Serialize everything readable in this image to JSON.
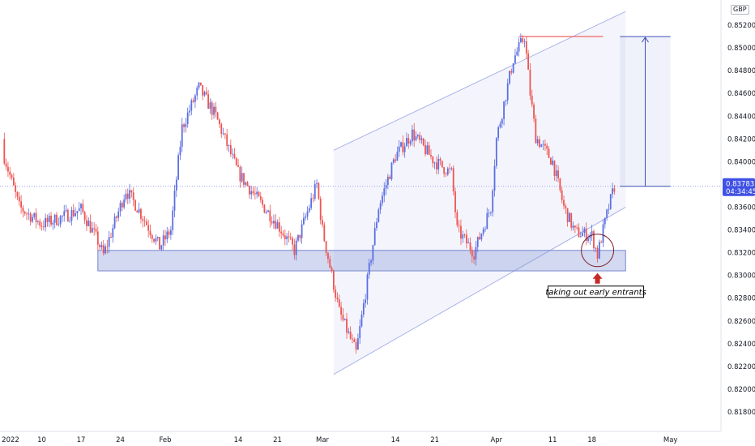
{
  "chart_data": {
    "type": "candlestick",
    "currency": "GBP",
    "last_price": "0.83783",
    "countdown": "04:34:45",
    "y_ticks": [
      "0.81800",
      "0.82000",
      "0.82200",
      "0.82400",
      "0.82600",
      "0.82800",
      "0.83000",
      "0.83200",
      "0.83400",
      "0.83600",
      "0.83800",
      "0.84000",
      "0.84200",
      "0.84400",
      "0.84600",
      "0.84800",
      "0.85000",
      "0.85200"
    ],
    "x_ticks": [
      "2022",
      "10",
      "17",
      "24",
      "Feb",
      "14",
      "21",
      "Mar",
      "14",
      "21",
      "Apr",
      "11",
      "18",
      "May"
    ],
    "annotation": "taking out early entrants",
    "colors": {
      "up": "#5b6ee1",
      "down": "#ef5350",
      "zone": "#8a9ad8",
      "channel": "#a9b3e8",
      "marker": "#c62828"
    },
    "close_path": [
      {
        "date": "2022-01-03",
        "close": 0.841
      },
      {
        "date": "2022-01-06",
        "close": 0.836
      },
      {
        "date": "2022-01-10",
        "close": 0.8345
      },
      {
        "date": "2022-01-13",
        "close": 0.835
      },
      {
        "date": "2022-01-17",
        "close": 0.8358
      },
      {
        "date": "2022-01-20",
        "close": 0.833
      },
      {
        "date": "2022-01-21",
        "close": 0.8318
      },
      {
        "date": "2022-01-25",
        "close": 0.8375
      },
      {
        "date": "2022-01-27",
        "close": 0.836
      },
      {
        "date": "2022-01-31",
        "close": 0.8325
      },
      {
        "date": "2022-02-02",
        "close": 0.834
      },
      {
        "date": "2022-02-04",
        "close": 0.843
      },
      {
        "date": "2022-02-07",
        "close": 0.8465
      },
      {
        "date": "2022-02-10",
        "close": 0.844
      },
      {
        "date": "2022-02-14",
        "close": 0.839
      },
      {
        "date": "2022-02-17",
        "close": 0.837
      },
      {
        "date": "2022-02-21",
        "close": 0.8345
      },
      {
        "date": "2022-02-24",
        "close": 0.8322
      },
      {
        "date": "2022-02-28",
        "close": 0.838
      },
      {
        "date": "2022-03-01",
        "close": 0.834
      },
      {
        "date": "2022-03-04",
        "close": 0.8268
      },
      {
        "date": "2022-03-07",
        "close": 0.8232
      },
      {
        "date": "2022-03-09",
        "close": 0.8295
      },
      {
        "date": "2022-03-11",
        "close": 0.836
      },
      {
        "date": "2022-03-14",
        "close": 0.8405
      },
      {
        "date": "2022-03-17",
        "close": 0.8425
      },
      {
        "date": "2022-03-21",
        "close": 0.84
      },
      {
        "date": "2022-03-24",
        "close": 0.839
      },
      {
        "date": "2022-03-25",
        "close": 0.834
      },
      {
        "date": "2022-03-28",
        "close": 0.832
      },
      {
        "date": "2022-03-31",
        "close": 0.836
      },
      {
        "date": "2022-04-01",
        "close": 0.842
      },
      {
        "date": "2022-04-04",
        "close": 0.849
      },
      {
        "date": "2022-04-06",
        "close": 0.851
      },
      {
        "date": "2022-04-07",
        "close": 0.846
      },
      {
        "date": "2022-04-08",
        "close": 0.8422
      },
      {
        "date": "2022-04-11",
        "close": 0.84
      },
      {
        "date": "2022-04-13",
        "close": 0.836
      },
      {
        "date": "2022-04-15",
        "close": 0.8338
      },
      {
        "date": "2022-04-18",
        "close": 0.8335
      },
      {
        "date": "2022-04-19",
        "close": 0.8318
      },
      {
        "date": "2022-04-20",
        "close": 0.834
      },
      {
        "date": "2022-04-21",
        "close": 0.836
      },
      {
        "date": "2022-04-22",
        "close": 0.83783
      }
    ],
    "support_zone": [
      0.8304,
      0.8322
    ],
    "target_level": 0.851,
    "projection": [
      0.83783,
      0.851
    ],
    "ylim": [
      0.817,
      0.8535
    ]
  }
}
